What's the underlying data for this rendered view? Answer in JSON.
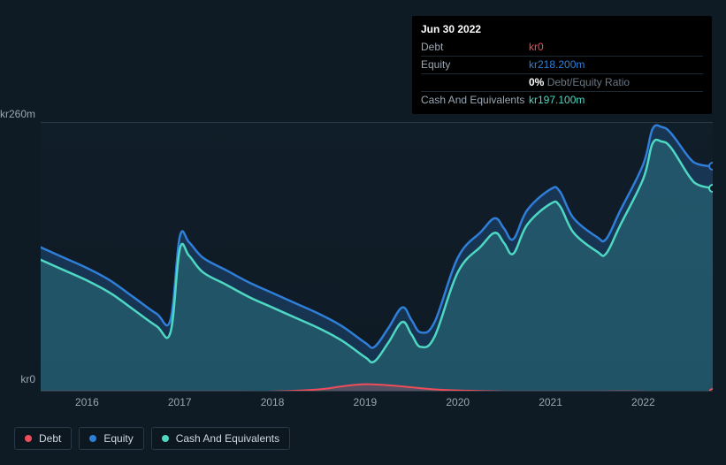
{
  "tooltip": {
    "date": "Jun 30 2022",
    "rows": [
      {
        "label": "Debt",
        "value": "kr0",
        "color": "#ef4d5a"
      },
      {
        "label": "Equity",
        "value": "kr218.200m",
        "color": "#2f7ed8"
      },
      {
        "label": "",
        "value": "0%",
        "note": "Debt/Equity Ratio",
        "ratio": true
      },
      {
        "label": "Cash And Equivalents",
        "value": "kr197.100m",
        "color": "#4ed8c3"
      }
    ]
  },
  "chart": {
    "type": "area",
    "background": "#0e1a24",
    "grid_color": "#2a3945",
    "y_max_label": "kr260m",
    "y_min_label": "kr0",
    "ylim": [
      0,
      260
    ],
    "xlim": [
      2015.5,
      2022.75
    ],
    "x_ticks": [
      2016,
      2017,
      2018,
      2019,
      2020,
      2021,
      2022
    ],
    "x_tick_labels": [
      "2016",
      "2017",
      "2018",
      "2019",
      "2020",
      "2021",
      "2022"
    ],
    "series": [
      {
        "name": "Equity",
        "color": "#2f7ed8",
        "fill": "rgba(47,126,216,0.25)",
        "line_width": 2.5,
        "data": [
          [
            2015.5,
            140
          ],
          [
            2015.75,
            130
          ],
          [
            2016.0,
            120
          ],
          [
            2016.25,
            108
          ],
          [
            2016.5,
            92
          ],
          [
            2016.75,
            76
          ],
          [
            2016.9,
            70
          ],
          [
            2017.0,
            150
          ],
          [
            2017.1,
            145
          ],
          [
            2017.25,
            130
          ],
          [
            2017.5,
            118
          ],
          [
            2017.75,
            106
          ],
          [
            2018.0,
            96
          ],
          [
            2018.25,
            86
          ],
          [
            2018.5,
            76
          ],
          [
            2018.75,
            64
          ],
          [
            2019.0,
            48
          ],
          [
            2019.1,
            44
          ],
          [
            2019.25,
            62
          ],
          [
            2019.4,
            82
          ],
          [
            2019.5,
            70
          ],
          [
            2019.6,
            58
          ],
          [
            2019.75,
            68
          ],
          [
            2020.0,
            130
          ],
          [
            2020.25,
            155
          ],
          [
            2020.4,
            168
          ],
          [
            2020.5,
            158
          ],
          [
            2020.6,
            148
          ],
          [
            2020.75,
            176
          ],
          [
            2021.0,
            196
          ],
          [
            2021.1,
            194
          ],
          [
            2021.25,
            168
          ],
          [
            2021.5,
            150
          ],
          [
            2021.6,
            148
          ],
          [
            2021.75,
            175
          ],
          [
            2022.0,
            220
          ],
          [
            2022.1,
            254
          ],
          [
            2022.2,
            256
          ],
          [
            2022.3,
            250
          ],
          [
            2022.5,
            226
          ],
          [
            2022.6,
            220
          ],
          [
            2022.75,
            218
          ]
        ]
      },
      {
        "name": "Cash And Equivalents",
        "color": "#4ed8c3",
        "fill": "rgba(78,216,195,0.20)",
        "line_width": 2.5,
        "data": [
          [
            2015.5,
            128
          ],
          [
            2015.75,
            118
          ],
          [
            2016.0,
            108
          ],
          [
            2016.25,
            96
          ],
          [
            2016.5,
            80
          ],
          [
            2016.75,
            64
          ],
          [
            2016.9,
            58
          ],
          [
            2017.0,
            138
          ],
          [
            2017.1,
            132
          ],
          [
            2017.25,
            116
          ],
          [
            2017.5,
            104
          ],
          [
            2017.75,
            92
          ],
          [
            2018.0,
            82
          ],
          [
            2018.25,
            72
          ],
          [
            2018.5,
            62
          ],
          [
            2018.75,
            50
          ],
          [
            2019.0,
            34
          ],
          [
            2019.1,
            30
          ],
          [
            2019.25,
            48
          ],
          [
            2019.4,
            68
          ],
          [
            2019.5,
            56
          ],
          [
            2019.6,
            44
          ],
          [
            2019.75,
            54
          ],
          [
            2020.0,
            116
          ],
          [
            2020.25,
            141
          ],
          [
            2020.4,
            154
          ],
          [
            2020.5,
            144
          ],
          [
            2020.6,
            134
          ],
          [
            2020.75,
            162
          ],
          [
            2021.0,
            182
          ],
          [
            2021.1,
            180
          ],
          [
            2021.25,
            154
          ],
          [
            2021.5,
            136
          ],
          [
            2021.6,
            134
          ],
          [
            2021.75,
            161
          ],
          [
            2022.0,
            206
          ],
          [
            2022.1,
            240
          ],
          [
            2022.2,
            242
          ],
          [
            2022.3,
            236
          ],
          [
            2022.5,
            208
          ],
          [
            2022.6,
            200
          ],
          [
            2022.75,
            197
          ]
        ]
      },
      {
        "name": "Debt",
        "color": "#ef4d5a",
        "fill": "rgba(239,77,90,0.25)",
        "line_width": 2,
        "data": [
          [
            2015.5,
            1
          ],
          [
            2016.0,
            1
          ],
          [
            2016.5,
            1
          ],
          [
            2017.0,
            1
          ],
          [
            2017.5,
            1
          ],
          [
            2018.0,
            1
          ],
          [
            2018.5,
            3
          ],
          [
            2018.75,
            6
          ],
          [
            2019.0,
            8
          ],
          [
            2019.25,
            7
          ],
          [
            2019.5,
            5
          ],
          [
            2019.75,
            3
          ],
          [
            2020.0,
            2
          ],
          [
            2020.5,
            1
          ],
          [
            2021.0,
            1
          ],
          [
            2021.5,
            1
          ],
          [
            2022.0,
            1
          ],
          [
            2022.5,
            0
          ],
          [
            2022.75,
            0
          ]
        ]
      }
    ],
    "hover_markers": [
      {
        "series": "Equity",
        "color": "#2f7ed8",
        "x": 2022.75,
        "y": 218
      },
      {
        "series": "Cash And Equivalents",
        "color": "#4ed8c3",
        "x": 2022.75,
        "y": 197
      },
      {
        "series": "Debt",
        "color": "#ef4d5a",
        "x": 2022.75,
        "y": 0
      }
    ]
  },
  "legend": [
    {
      "label": "Debt",
      "color": "#ef4d5a"
    },
    {
      "label": "Equity",
      "color": "#2f7ed8"
    },
    {
      "label": "Cash And Equivalents",
      "color": "#4ed8c3"
    }
  ]
}
